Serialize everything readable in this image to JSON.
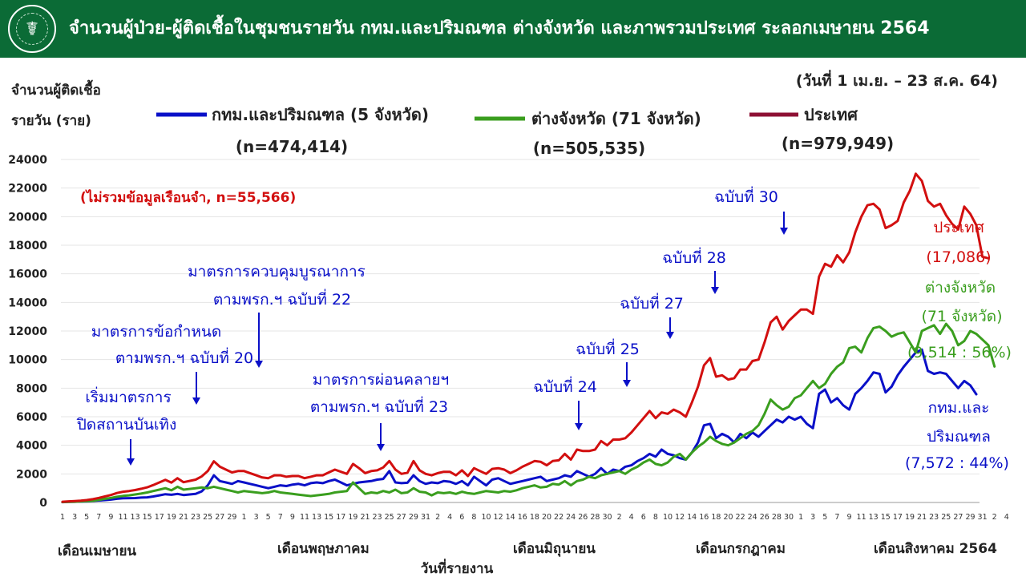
{
  "header": {
    "title": "จำนวนผู้ป่วย-ผู้ติดเชื้อในชุมชนรายวัน กทม.และปริมณฑล ต่างจังหวัด และภาพรวมประเทศ ระลอกเมษายน 2564",
    "logo_icon": "moph-emblem-icon"
  },
  "chart_data": {
    "type": "line",
    "date_range": "(วันที่ 1 เม.ย. – 23 ส.ค. 64)",
    "ylabel": [
      "จำนวนผู้ติดเชื้อ",
      "รายวัน (ราย)"
    ],
    "xlabel": "วันที่รายงาน",
    "ylim": [
      0,
      24000
    ],
    "yticks": [
      "0",
      "2000",
      "4000",
      "6000",
      "8000",
      "10000",
      "12000",
      "14000",
      "16000",
      "18000",
      "20000",
      "22000",
      "24000"
    ],
    "x_tick_labels": [
      "1",
      "3",
      "5",
      "7",
      "9",
      "11",
      "13",
      "15",
      "17",
      "19",
      "21",
      "23",
      "25",
      "27",
      "29",
      "1",
      "3",
      "5",
      "7",
      "9",
      "11",
      "13",
      "15",
      "17",
      "19",
      "21",
      "23",
      "25",
      "27",
      "29",
      "31",
      "2",
      "4",
      "6",
      "8",
      "10",
      "12",
      "14",
      "16",
      "18",
      "20",
      "22",
      "24",
      "26",
      "28",
      "30",
      "2",
      "4",
      "6",
      "8",
      "10",
      "12",
      "14",
      "16",
      "18",
      "20",
      "22",
      "24",
      "26",
      "28",
      "30",
      "1",
      "3",
      "5",
      "7",
      "9",
      "11",
      "13",
      "15",
      "17",
      "19",
      "21",
      "23",
      "25",
      "27",
      "29",
      "31",
      "2",
      "4"
    ],
    "months": [
      "เดือนเมษายน",
      "เดือนพฤษภาคม",
      "เดือนมิถุนายน",
      "เดือนกรกฎาคม",
      "เดือนสิงหาคม 2564"
    ],
    "series": [
      {
        "name": "กทม.และปริมณฑล (5 จังหวัด)",
        "n": "(n=474,414)",
        "color": "#0a10c8",
        "values": [
          20,
          40,
          50,
          60,
          80,
          110,
          140,
          170,
          200,
          260,
          290,
          300,
          310,
          340,
          360,
          420,
          500,
          580,
          540,
          600,
          520,
          560,
          600,
          780,
          1200,
          1900,
          1500,
          1400,
          1300,
          1500,
          1400,
          1300,
          1200,
          1100,
          1000,
          1100,
          1200,
          1150,
          1250,
          1300,
          1200,
          1350,
          1400,
          1350,
          1500,
          1600,
          1400,
          1200,
          1300,
          1400,
          1450,
          1500,
          1600,
          1650,
          2200,
          1400,
          1350,
          1380,
          1900,
          1500,
          1300,
          1400,
          1350,
          1500,
          1450,
          1300,
          1500,
          1200,
          1800,
          1500,
          1200,
          1600,
          1700,
          1500,
          1300,
          1400,
          1500,
          1600,
          1700,
          1800,
          1500,
          1600,
          1700,
          1900,
          1800,
          2200,
          2000,
          1800,
          2000,
          2400,
          2000,
          2300,
          2200,
          2500,
          2600,
          2900,
          3100,
          3400,
          3200,
          3700,
          3400,
          3300,
          3100,
          3000,
          3500,
          4200,
          5400,
          5500,
          4500,
          4800,
          4600,
          4200,
          4800,
          4500,
          4900,
          4600,
          5000,
          5400,
          5800,
          5600,
          6000,
          5800,
          6000,
          5500,
          5200,
          7600,
          7900,
          7000,
          7300,
          6800,
          6500,
          7600,
          8000,
          8500,
          9100,
          9000,
          7700,
          8100,
          8900,
          9500,
          10000,
          10500,
          10700,
          9200,
          9000,
          9100,
          9000,
          8500,
          8000,
          8500,
          8200,
          7572
        ]
      },
      {
        "name": "ต่างจังหวัด (71 จังหวัด)",
        "n": "(n=505,535)",
        "color": "#3a9e1e",
        "values": [
          30,
          40,
          50,
          70,
          90,
          120,
          180,
          250,
          320,
          400,
          460,
          500,
          560,
          620,
          700,
          800,
          900,
          1000,
          850,
          1100,
          900,
          950,
          1000,
          1050,
          1000,
          1100,
          1000,
          900,
          800,
          700,
          800,
          750,
          700,
          650,
          700,
          800,
          700,
          650,
          600,
          550,
          500,
          450,
          500,
          550,
          600,
          700,
          750,
          800,
          1400,
          1000,
          600,
          700,
          650,
          800,
          700,
          900,
          650,
          700,
          1000,
          750,
          700,
          500,
          700,
          650,
          700,
          600,
          750,
          650,
          600,
          700,
          800,
          750,
          700,
          800,
          750,
          850,
          1000,
          1100,
          1200,
          1050,
          1100,
          1300,
          1250,
          1500,
          1200,
          1500,
          1600,
          1800,
          1700,
          1900,
          2000,
          2100,
          2200,
          2000,
          2300,
          2500,
          2800,
          3000,
          2700,
          2600,
          2800,
          3200,
          3400,
          3000,
          3500,
          3900,
          4200,
          4600,
          4300,
          4100,
          4000,
          4200,
          4500,
          4800,
          5000,
          5400,
          6200,
          7200,
          6800,
          6500,
          6700,
          7300,
          7500,
          8000,
          8500,
          8000,
          8300,
          9000,
          9500,
          9800,
          10800,
          10900,
          10500,
          11500,
          12200,
          12300,
          12000,
          11600,
          11800,
          11900,
          11200,
          10500,
          12000,
          12200,
          12400,
          11800,
          12500,
          12000,
          11000,
          11300,
          12000,
          11800,
          11400,
          11000,
          9514
        ]
      },
      {
        "name": "ประเทศ",
        "n": "(n=979,949)",
        "color": "#d20f0f",
        "legend_color": "#8e1034",
        "values": [
          50,
          80,
          100,
          130,
          170,
          230,
          320,
          420,
          520,
          660,
          750,
          800,
          870,
          960,
          1060,
          1220,
          1400,
          1580,
          1390,
          1700,
          1420,
          1510,
          1600,
          1830,
          2200,
          2880,
          2500,
          2300,
          2100,
          2200,
          2200,
          2050,
          1900,
          1750,
          1700,
          1900,
          1900,
          1800,
          1850,
          1850,
          1700,
          1800,
          1900,
          1900,
          2100,
          2300,
          2150,
          2000,
          2700,
          2400,
          2050,
          2200,
          2250,
          2450,
          2900,
          2300,
          2000,
          2080,
          2900,
          2250,
          2000,
          1900,
          2050,
          2150,
          2150,
          1900,
          2250,
          1850,
          2400,
          2200,
          2000,
          2350,
          2400,
          2300,
          2050,
          2250,
          2500,
          2700,
          2900,
          2850,
          2600,
          2900,
          2950,
          3400,
          3000,
          3700,
          3600,
          3600,
          3700,
          4300,
          4000,
          4400,
          4400,
          4500,
          4900,
          5400,
          5900,
          6400,
          5900,
          6300,
          6200,
          6500,
          6300,
          6000,
          7000,
          8100,
          9600,
          10100,
          8800,
          8900,
          8600,
          8700,
          9300,
          9300,
          9900,
          10000,
          11200,
          12600,
          13000,
          12100,
          12700,
          13100,
          13500,
          13500,
          13200,
          15800,
          16700,
          16500,
          17300,
          16800,
          17500,
          18900,
          20000,
          20800,
          20900,
          20500,
          19200,
          19400,
          19700,
          21000,
          21800,
          23000,
          22500,
          21100,
          20700,
          20900,
          20100,
          19500,
          19100,
          20700,
          20200,
          19400,
          17200,
          17086
        ]
      }
    ],
    "exclusion_note": "(ไม่รวมข้อมูลเรือนจำ, n=55,566)",
    "annotations": [
      {
        "lines": [
          "เริ่มมาตรการ",
          "ปิดสถานบันเทิง"
        ],
        "color": "#0a10c8"
      },
      {
        "lines": [
          "มาตรการข้อกำหนด",
          "ตามพรก.ฯ ฉบับที่ 20"
        ],
        "color": "#0a10c8"
      },
      {
        "lines": [
          "มาตรการควบคุมบูรณาการ",
          "ตามพรก.ฯ ฉบับที่ 22"
        ],
        "color": "#0a10c8"
      },
      {
        "lines": [
          "มาตรการผ่อนคลายฯ",
          "ตามพรก.ฯ ฉบับที่ 23"
        ],
        "color": "#0a10c8"
      },
      {
        "lines": [
          "ฉบับที่ 24"
        ],
        "color": "#0a10c8"
      },
      {
        "lines": [
          "ฉบับที่ 25"
        ],
        "color": "#0a10c8"
      },
      {
        "lines": [
          "ฉบับที่ 27"
        ],
        "color": "#0a10c8"
      },
      {
        "lines": [
          "ฉบับที่ 28"
        ],
        "color": "#0a10c8"
      },
      {
        "lines": [
          "ฉบับที่ 30"
        ],
        "color": "#0a10c8"
      }
    ],
    "end_labels": [
      {
        "lines": [
          "ประเทศ",
          "(17,086)"
        ],
        "color": "#d20f0f"
      },
      {
        "lines": [
          "ต่างจังหวัด",
          "(71 จังหวัด)",
          "(9,514 : 56%)"
        ],
        "color": "#3a9e1e"
      },
      {
        "lines": [
          "กทม.และ",
          "ปริมณฑล",
          "(7,572 : 44%)"
        ],
        "color": "#0a10c8"
      }
    ]
  }
}
